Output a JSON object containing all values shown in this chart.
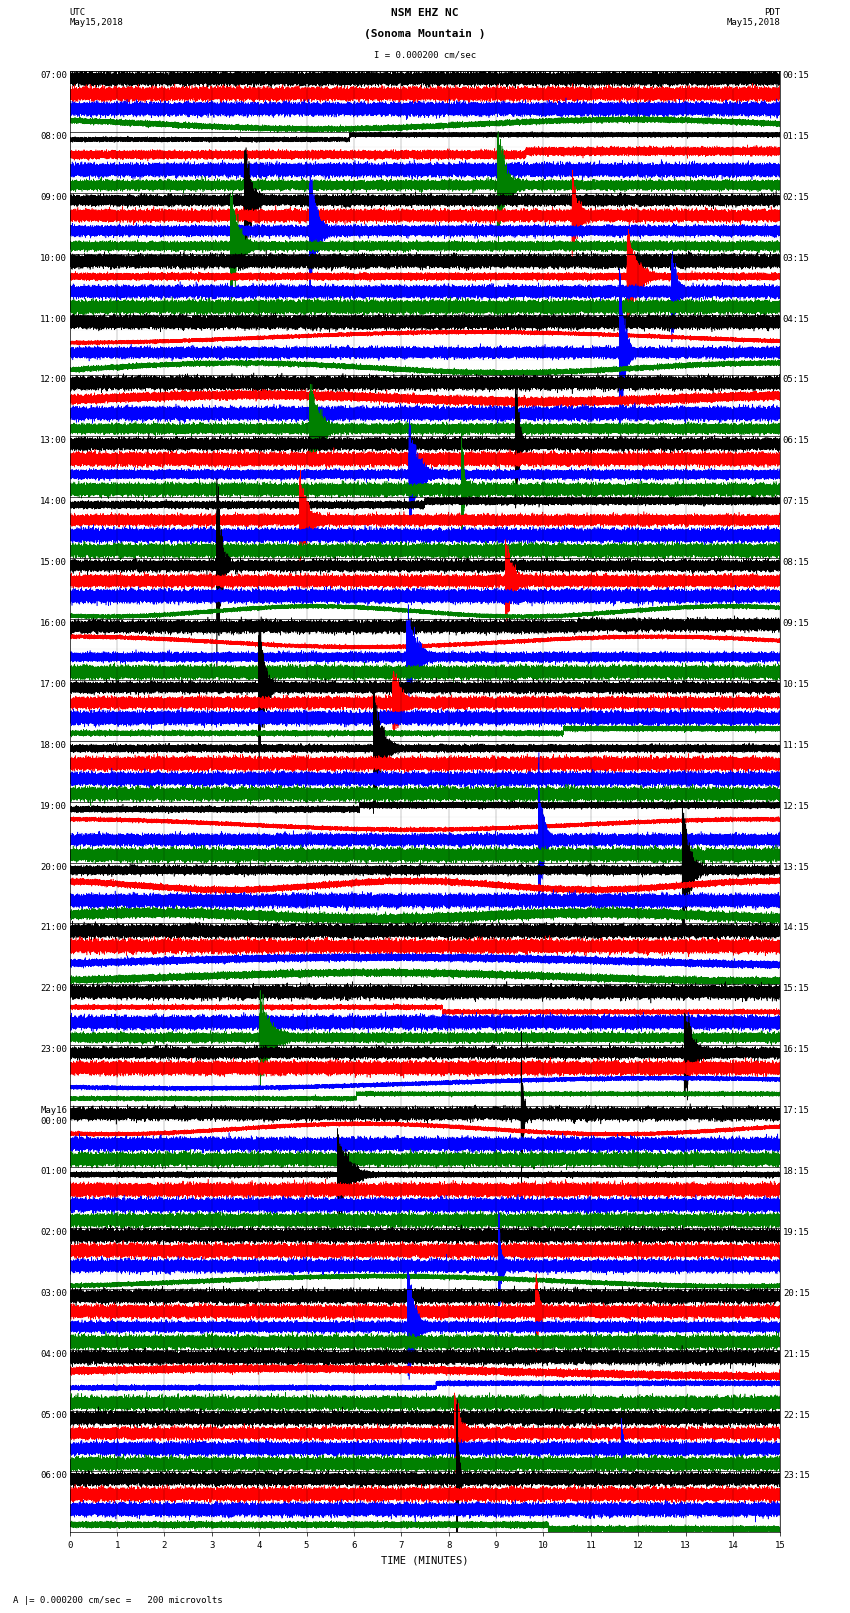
{
  "title_line1": "NSM EHZ NC",
  "title_line2": "(Sonoma Mountain )",
  "scale_label": "I = 0.000200 cm/sec",
  "footer_label": "A |= 0.000200 cm/sec =   200 microvolts",
  "utc_label": "UTC\nMay15,2018",
  "pdt_label": "PDT\nMay15,2018",
  "xlabel": "TIME (MINUTES)",
  "bg_color": "#ffffff",
  "trace_colors": [
    "black",
    "red",
    "blue",
    "green"
  ],
  "left_times_utc": [
    "07:00",
    "",
    "",
    "",
    "08:00",
    "",
    "",
    "",
    "09:00",
    "",
    "",
    "",
    "10:00",
    "",
    "",
    "",
    "11:00",
    "",
    "",
    "",
    "12:00",
    "",
    "",
    "",
    "13:00",
    "",
    "",
    "",
    "14:00",
    "",
    "",
    "",
    "15:00",
    "",
    "",
    "",
    "16:00",
    "",
    "",
    "",
    "17:00",
    "",
    "",
    "",
    "18:00",
    "",
    "",
    "",
    "19:00",
    "",
    "",
    "",
    "20:00",
    "",
    "",
    "",
    "21:00",
    "",
    "",
    "",
    "22:00",
    "",
    "",
    "",
    "23:00",
    "",
    "",
    "",
    "May16\n00:00",
    "",
    "",
    "",
    "01:00",
    "",
    "",
    "",
    "02:00",
    "",
    "",
    "",
    "03:00",
    "",
    "",
    "",
    "04:00",
    "",
    "",
    "",
    "05:00",
    "",
    "",
    "",
    "06:00",
    "",
    "",
    ""
  ],
  "right_times_pdt": [
    "00:15",
    "",
    "",
    "",
    "01:15",
    "",
    "",
    "",
    "02:15",
    "",
    "",
    "",
    "03:15",
    "",
    "",
    "",
    "04:15",
    "",
    "",
    "",
    "05:15",
    "",
    "",
    "",
    "06:15",
    "",
    "",
    "",
    "07:15",
    "",
    "",
    "",
    "08:15",
    "",
    "",
    "",
    "09:15",
    "",
    "",
    "",
    "10:15",
    "",
    "",
    "",
    "11:15",
    "",
    "",
    "",
    "12:15",
    "",
    "",
    "",
    "13:15",
    "",
    "",
    "",
    "14:15",
    "",
    "",
    "",
    "15:15",
    "",
    "",
    "",
    "16:15",
    "",
    "",
    "",
    "17:15",
    "",
    "",
    "",
    "18:15",
    "",
    "",
    "",
    "19:15",
    "",
    "",
    "",
    "20:15",
    "",
    "",
    "",
    "21:15",
    "",
    "",
    "",
    "22:15",
    "",
    "",
    "",
    "23:15",
    "",
    "",
    ""
  ],
  "n_hour_groups": 24,
  "n_traces_per_group": 4,
  "minutes": 15,
  "sample_rate": 100,
  "fig_width": 8.5,
  "fig_height": 16.13,
  "dpi": 100,
  "tick_label_fontsize": 6.5,
  "title_fontsize": 8,
  "footer_fontsize": 6.5,
  "x_tick_positions": [
    0,
    1,
    2,
    3,
    4,
    5,
    6,
    7,
    8,
    9,
    10,
    11,
    12,
    13,
    14,
    15
  ],
  "trace_lw": 0.4,
  "noise_amplitude": 0.08,
  "group_sep_linewidth": 0.5
}
